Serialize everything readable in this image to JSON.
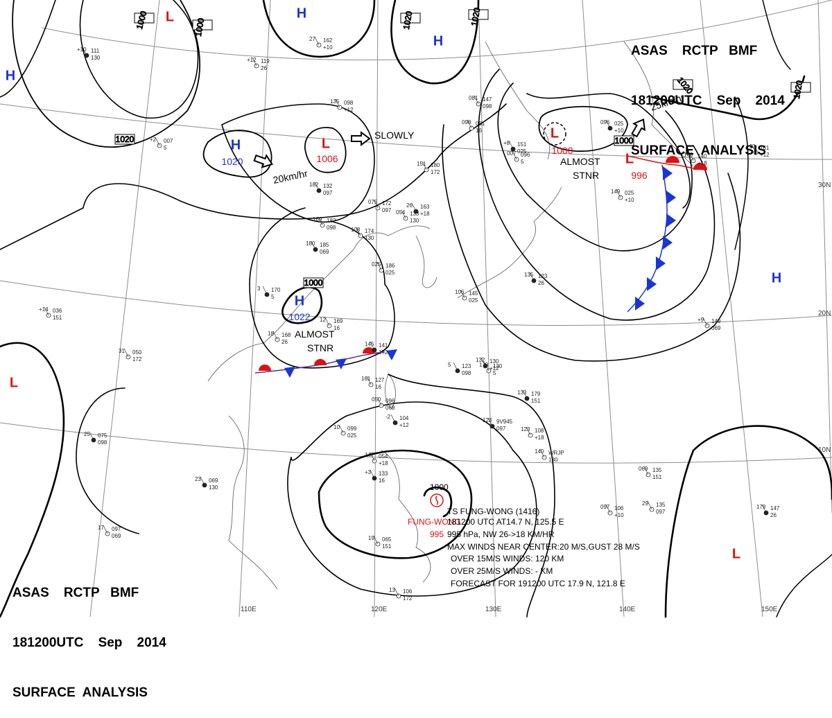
{
  "header": {
    "line1": "ASAS    RCTP   BMF",
    "line2": "181200UTC    Sep    2014",
    "line3": "SURFACE  ANALYSIS"
  },
  "colors": {
    "high": "#1a35d6",
    "low": "#e01010",
    "isobar": "#000000",
    "grid": "#808080"
  },
  "pressure_centers": [
    {
      "type": "H",
      "label": "H",
      "value": "1020"
    },
    {
      "type": "H",
      "label": "H",
      "value": "1022"
    },
    {
      "type": "H",
      "label": "H",
      "value": ""
    },
    {
      "type": "H",
      "label": "H",
      "value": ""
    },
    {
      "type": "H",
      "label": "H",
      "value": ""
    },
    {
      "type": "H",
      "label": "H",
      "value": ""
    },
    {
      "type": "L",
      "label": "L",
      "value": "1006"
    },
    {
      "type": "L",
      "label": "L",
      "value": "1000"
    },
    {
      "type": "L",
      "label": "L",
      "value": "996"
    },
    {
      "type": "L",
      "label": "L",
      "value": ""
    },
    {
      "type": "L",
      "label": "L",
      "value": ""
    },
    {
      "type": "L",
      "label": "L",
      "value": ""
    }
  ],
  "isobar_labels": [
    "1000",
    "1000",
    "1020",
    "1020",
    "1020",
    "1020",
    "1000",
    "1020",
    "1000"
  ],
  "movement_labels": [
    "20km/hr",
    "SLOWLY",
    "25km/hr"
  ],
  "stationary_labels": [
    {
      "line1": "ALMOST",
      "line2": "STNR"
    },
    {
      "line1": "ALMOST",
      "line2": "STNR"
    }
  ],
  "longitude_labels": [
    "110E",
    "120E",
    "130E",
    "140E",
    "150E"
  ],
  "latitude_labels": [
    "30N",
    "20N",
    "10N"
  ],
  "typhoon": {
    "name_red": "FUNG-WONG",
    "pressure_red": "995",
    "center_value": "1000",
    "lines": [
      "TS FUNG-WONG  (1416)",
      "181200 UTC  AT14.7 N, 125.5 E",
      "995 hPa, NW  26->18 KM/HR",
      "MAX WINDS NEAR CENTER:20 M/S,GUST 28 M/S",
      "OVER 15M/S WINDS: 120 KM",
      "OVER 25M/S WINDS:  - KM",
      "FORECAST FOR 191200 UTC 17.9 N, 121.8 E"
    ]
  },
  "station_values": [
    "111",
    "036",
    "050",
    "075",
    "097",
    "099",
    "104",
    "106",
    "108",
    "123",
    "127",
    "130",
    "132",
    "133",
    "135",
    "141",
    "147",
    "149",
    "151",
    "161",
    "162",
    "163",
    "168",
    "169",
    "170",
    "172",
    "174",
    "179",
    "180",
    "182",
    "185",
    "186",
    "098",
    "025",
    "054",
    "119",
    "133",
    "007",
    "135",
    "069",
    "065",
    "106",
    "123",
    "096",
    "145",
    "130",
    "025",
    "140",
    "147",
    "081",
    "096",
    "9V945",
    "WRJP",
    "+12",
    "+9",
    "+16",
    "+15",
    "+5",
    "+3",
    "+8",
    "+10",
    "+7",
    "+4",
    "+2",
    "+13",
    "+14",
    "+20",
    "+18",
    "29",
    "27",
    "31",
    "28",
    "21",
    "23",
    "26",
    "25",
    "20",
    "22",
    "19",
    "18",
    "17",
    "16",
    "14",
    "13",
    "12",
    "10",
    "8",
    "6",
    "5",
    "3",
    "-2"
  ]
}
